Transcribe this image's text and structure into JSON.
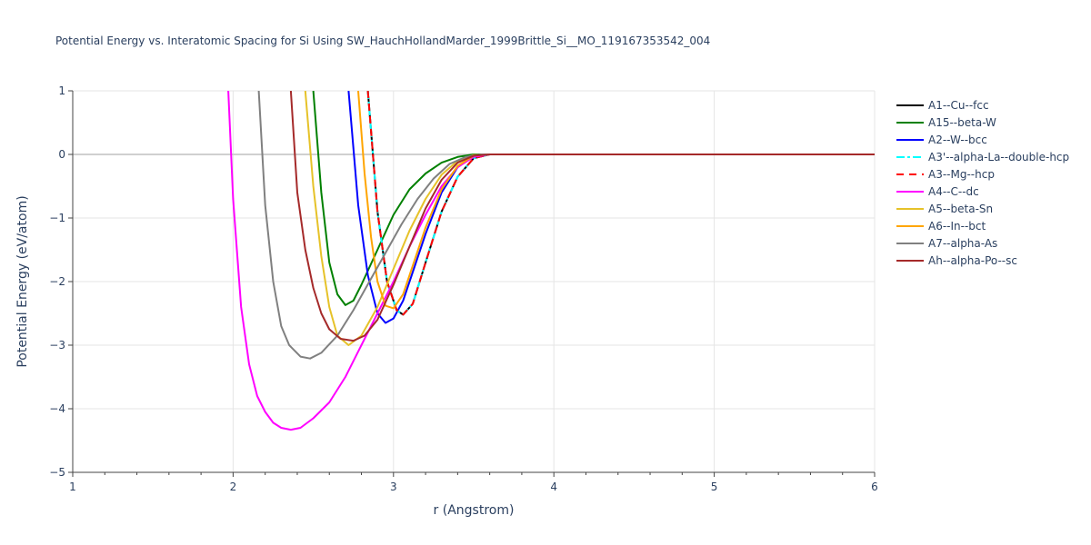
{
  "chart_data": {
    "type": "line",
    "title": "Potential Energy vs. Interatomic Spacing for Si Using SW_HauchHollandMarder_1999Brittle_Si__MO_119167353542_004",
    "xlabel": "r (Angstrom)",
    "ylabel": "Potential Energy (eV/atom)",
    "xlim": [
      1,
      6
    ],
    "ylim": [
      -5,
      1
    ],
    "xticks": [
      "1",
      "2",
      "3",
      "4",
      "5",
      "6"
    ],
    "yticks": [
      "1",
      "0",
      "−1",
      "−2",
      "−3",
      "−4",
      "−5"
    ],
    "grid": true,
    "legend_position": "top-right",
    "series": [
      {
        "name": "A1--Cu--fcc",
        "color": "#000000",
        "dash": "solid",
        "x": [
          2.84,
          2.9,
          2.96,
          3.02,
          3.06,
          3.12,
          3.2,
          3.3,
          3.4,
          3.5,
          3.6,
          3.8,
          4.5,
          6.0
        ],
        "y": [
          1.0,
          -0.9,
          -2.0,
          -2.45,
          -2.52,
          -2.35,
          -1.7,
          -0.9,
          -0.35,
          -0.06,
          0.0,
          0.0,
          0.0,
          0.0
        ]
      },
      {
        "name": "A15--beta-W",
        "color": "#008000",
        "dash": "solid",
        "x": [
          2.5,
          2.55,
          2.6,
          2.65,
          2.7,
          2.75,
          2.8,
          2.9,
          3.0,
          3.1,
          3.2,
          3.3,
          3.4,
          3.5,
          3.6,
          3.8,
          4.5,
          6.0
        ],
        "y": [
          1.0,
          -0.6,
          -1.7,
          -2.2,
          -2.37,
          -2.3,
          -2.05,
          -1.5,
          -0.95,
          -0.55,
          -0.3,
          -0.13,
          -0.04,
          0.0,
          0.0,
          0.0,
          0.0,
          0.0
        ]
      },
      {
        "name": "A2--W--bcc",
        "color": "#0000ff",
        "dash": "solid",
        "x": [
          2.72,
          2.78,
          2.84,
          2.9,
          2.95,
          3.0,
          3.06,
          3.12,
          3.2,
          3.3,
          3.4,
          3.5,
          3.6,
          3.8,
          4.5,
          6.0
        ],
        "y": [
          1.0,
          -0.8,
          -1.9,
          -2.5,
          -2.65,
          -2.58,
          -2.3,
          -1.85,
          -1.25,
          -0.6,
          -0.2,
          -0.03,
          0.0,
          0.0,
          0.0,
          0.0
        ]
      },
      {
        "name": "A3'--alpha-La--double-hcp",
        "color": "#00ffff",
        "dash": "dashdot",
        "x": [
          2.84,
          2.9,
          2.96,
          3.02,
          3.06,
          3.12,
          3.2,
          3.3,
          3.4,
          3.5,
          3.6,
          3.8,
          4.5,
          6.0
        ],
        "y": [
          1.0,
          -0.9,
          -2.0,
          -2.45,
          -2.52,
          -2.35,
          -1.7,
          -0.9,
          -0.35,
          -0.06,
          0.0,
          0.0,
          0.0,
          0.0
        ]
      },
      {
        "name": "A3--Mg--hcp",
        "color": "#ff0000",
        "dash": "dash",
        "x": [
          2.84,
          2.9,
          2.96,
          3.02,
          3.06,
          3.12,
          3.2,
          3.3,
          3.4,
          3.5,
          3.6,
          3.8,
          4.5,
          6.0
        ],
        "y": [
          1.0,
          -0.9,
          -2.0,
          -2.45,
          -2.52,
          -2.35,
          -1.7,
          -0.9,
          -0.35,
          -0.06,
          0.0,
          0.0,
          0.0,
          0.0
        ]
      },
      {
        "name": "A4--C--dc",
        "color": "#ff00ff",
        "dash": "solid",
        "x": [
          1.97,
          2.0,
          2.05,
          2.1,
          2.15,
          2.2,
          2.25,
          2.3,
          2.36,
          2.42,
          2.5,
          2.6,
          2.7,
          2.8,
          2.9,
          3.0,
          3.1,
          3.2,
          3.3,
          3.4,
          3.5,
          3.6,
          3.8,
          4.5,
          6.0
        ],
        "y": [
          1.0,
          -0.7,
          -2.4,
          -3.3,
          -3.8,
          -4.05,
          -4.22,
          -4.3,
          -4.33,
          -4.3,
          -4.15,
          -3.9,
          -3.5,
          -3.0,
          -2.5,
          -2.0,
          -1.45,
          -0.95,
          -0.5,
          -0.2,
          -0.04,
          0.0,
          0.0,
          0.0,
          0.0
        ]
      },
      {
        "name": "A5--beta-Sn",
        "color": "#e6c229",
        "dash": "solid",
        "x": [
          2.45,
          2.5,
          2.55,
          2.6,
          2.65,
          2.72,
          2.8,
          2.9,
          3.0,
          3.1,
          3.2,
          3.3,
          3.4,
          3.5,
          3.6,
          3.8,
          4.5,
          6.0
        ],
        "y": [
          1.0,
          -0.5,
          -1.6,
          -2.4,
          -2.85,
          -3.0,
          -2.85,
          -2.4,
          -1.8,
          -1.2,
          -0.7,
          -0.32,
          -0.1,
          -0.01,
          0.0,
          0.0,
          0.0,
          0.0
        ]
      },
      {
        "name": "A6--In--bct",
        "color": "#ffa500",
        "dash": "solid",
        "x": [
          2.78,
          2.82,
          2.86,
          2.9,
          2.95,
          3.0,
          3.06,
          3.12,
          3.2,
          3.3,
          3.4,
          3.5,
          3.6,
          3.8,
          4.5,
          6.0
        ],
        "y": [
          1.0,
          -0.3,
          -1.3,
          -2.0,
          -2.38,
          -2.42,
          -2.2,
          -1.75,
          -1.15,
          -0.55,
          -0.18,
          -0.02,
          0.0,
          0.0,
          0.0,
          0.0
        ]
      },
      {
        "name": "A7--alpha-As",
        "color": "#808080",
        "dash": "solid",
        "x": [
          2.16,
          2.2,
          2.25,
          2.3,
          2.35,
          2.42,
          2.48,
          2.55,
          2.65,
          2.75,
          2.85,
          2.95,
          3.05,
          3.15,
          3.25,
          3.35,
          3.45,
          3.55,
          3.6,
          3.8,
          4.5,
          6.0
        ],
        "y": [
          1.0,
          -0.8,
          -2.0,
          -2.7,
          -3.0,
          -3.18,
          -3.21,
          -3.12,
          -2.85,
          -2.45,
          -2.0,
          -1.55,
          -1.1,
          -0.7,
          -0.38,
          -0.15,
          -0.04,
          0.0,
          0.0,
          0.0,
          0.0,
          0.0
        ]
      },
      {
        "name": "Ah--alpha-Po--sc",
        "color": "#a52a2a",
        "dash": "solid",
        "x": [
          2.36,
          2.4,
          2.45,
          2.5,
          2.55,
          2.6,
          2.67,
          2.75,
          2.82,
          2.9,
          3.0,
          3.1,
          3.2,
          3.3,
          3.4,
          3.5,
          3.6,
          3.8,
          4.5,
          6.0
        ],
        "y": [
          1.0,
          -0.6,
          -1.5,
          -2.1,
          -2.5,
          -2.75,
          -2.9,
          -2.93,
          -2.85,
          -2.6,
          -2.05,
          -1.45,
          -0.85,
          -0.4,
          -0.13,
          -0.02,
          0.0,
          0.0,
          0.0,
          0.0
        ]
      }
    ]
  }
}
